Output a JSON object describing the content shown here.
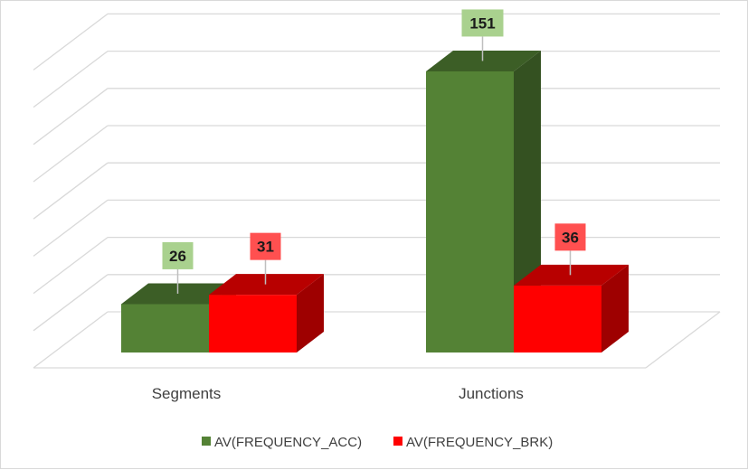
{
  "chart_data": {
    "type": "bar",
    "style": "3d-clustered-column",
    "categories": [
      "Segments",
      "Junctions"
    ],
    "series": [
      {
        "name": "AV(FREQUENCY_ACC)",
        "values": [
          26,
          151
        ],
        "color": "#548235",
        "label_bg": "#a9d18e"
      },
      {
        "name": "AV(FREQUENCY_BRK)",
        "values": [
          31,
          36
        ],
        "color": "#ff0000",
        "label_bg": "#ff5050"
      }
    ],
    "title": "",
    "xlabel": "",
    "ylabel": "",
    "ylim": [
      0,
      160
    ],
    "grid": true,
    "legend": "bottom"
  }
}
